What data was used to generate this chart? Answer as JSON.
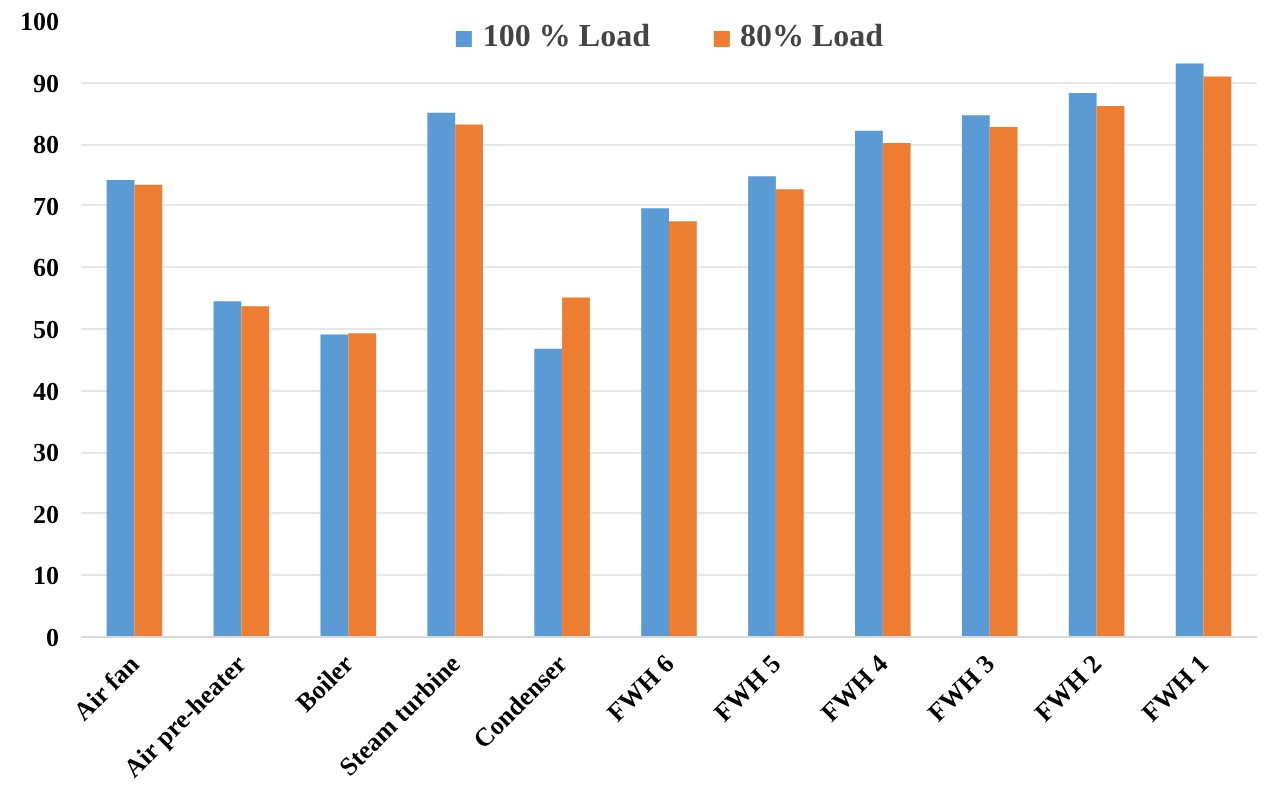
{
  "chart_data": {
    "type": "bar",
    "categories": [
      "Air fan",
      "Air pre-heater",
      "Boiler",
      "Steam turbine",
      "Condenser",
      "FWH 6",
      "FWH 5",
      "FWH 4",
      "FWH 3",
      "FWH 2",
      "FWH 1"
    ],
    "series": [
      {
        "name": "100 % Load",
        "color": "#5b9bd5",
        "values": [
          74.2,
          54.5,
          49.1,
          85.1,
          46.8,
          69.6,
          74.8,
          82.2,
          84.7,
          88.3,
          93.1
        ]
      },
      {
        "name": "80% Load",
        "color": "#ed7d31",
        "values": [
          73.4,
          53.7,
          49.3,
          83.2,
          55.1,
          67.5,
          72.7,
          80.2,
          82.8,
          86.2,
          91.0
        ]
      }
    ],
    "ylim": [
      0,
      100
    ],
    "yticks": [
      0,
      10,
      20,
      30,
      40,
      50,
      60,
      70,
      80,
      90,
      100
    ],
    "grid": "y",
    "legend": "top"
  }
}
